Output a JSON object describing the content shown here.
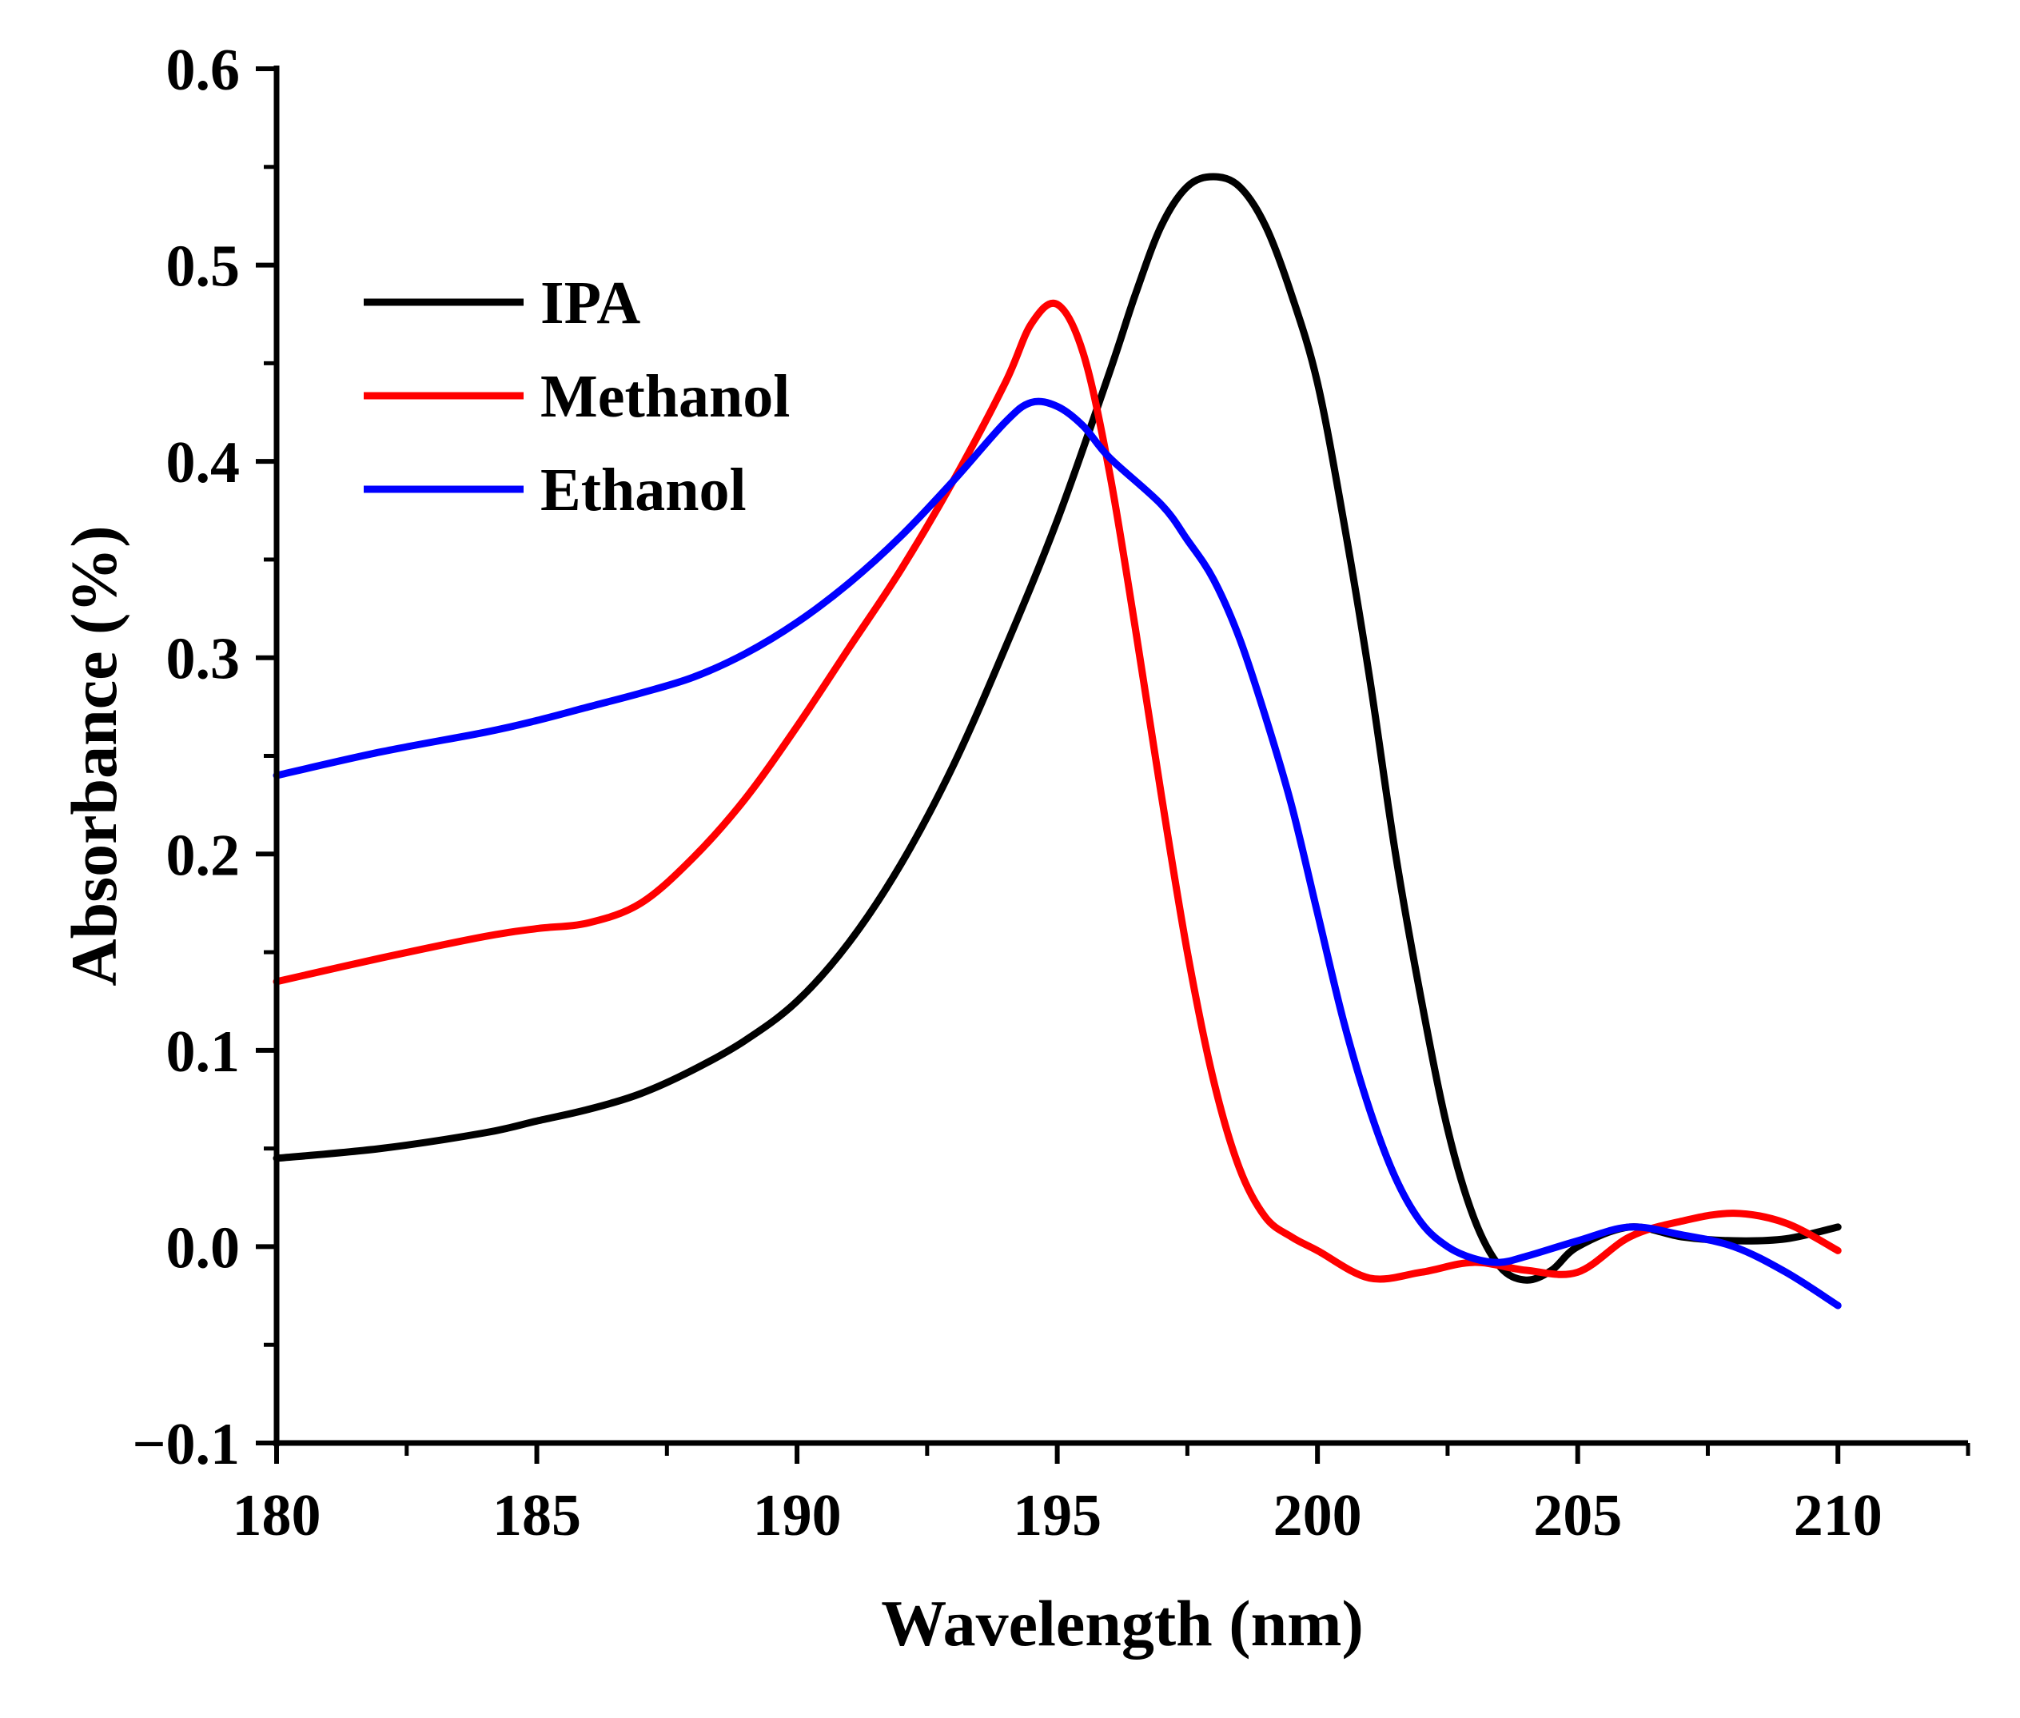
{
  "chart_data": {
    "type": "line",
    "title": "",
    "xlabel": "Wavelength (nm)",
    "ylabel": "Absorbance (%)",
    "xlim": [
      180,
      212.5
    ],
    "ylim": [
      -0.1,
      0.6
    ],
    "x_ticks": [
      180,
      185,
      190,
      195,
      200,
      205,
      210
    ],
    "x_tick_labels": [
      "180",
      "185",
      "190",
      "195",
      "200",
      "205",
      "210"
    ],
    "x_minor_step": 2.5,
    "y_ticks": [
      -0.1,
      0.0,
      0.1,
      0.2,
      0.3,
      0.4,
      0.5,
      0.6
    ],
    "y_tick_labels": [
      "−0.1",
      "0.0",
      "0.1",
      "0.2",
      "0.3",
      "0.4",
      "0.5",
      "0.6"
    ],
    "y_minor_step": 0.05,
    "grid": false,
    "legend_position": "upper-left",
    "series": [
      {
        "name": "IPA",
        "color": "#000000",
        "x": [
          180,
          182,
          184,
          185,
          186,
          187,
          188,
          189,
          190,
          191,
          192,
          193,
          194,
          195,
          196,
          196.5,
          197,
          197.5,
          198,
          198.5,
          199,
          199.5,
          200,
          200.5,
          201,
          201.5,
          202,
          202.5,
          203,
          203.5,
          204,
          204.5,
          205,
          206,
          207,
          208,
          209,
          210
        ],
        "y": [
          0.045,
          0.05,
          0.058,
          0.064,
          0.07,
          0.078,
          0.09,
          0.105,
          0.125,
          0.155,
          0.195,
          0.245,
          0.305,
          0.37,
          0.445,
          0.485,
          0.52,
          0.54,
          0.545,
          0.54,
          0.52,
          0.485,
          0.44,
          0.37,
          0.29,
          0.2,
          0.125,
          0.06,
          0.015,
          -0.01,
          -0.017,
          -0.012,
          0.0,
          0.01,
          0.005,
          0.003,
          0.004,
          0.01
        ]
      },
      {
        "name": "Methanol",
        "color": "#ff0000",
        "x": [
          180,
          182,
          184,
          185,
          186,
          187,
          188,
          189,
          190,
          191,
          192,
          193,
          194,
          194.5,
          195,
          195.5,
          196,
          196.5,
          197,
          197.5,
          198,
          198.5,
          199,
          199.5,
          200,
          201,
          202,
          203,
          204,
          205,
          206,
          207,
          208,
          209,
          210
        ],
        "y": [
          0.135,
          0.147,
          0.158,
          0.162,
          0.165,
          0.175,
          0.198,
          0.228,
          0.265,
          0.305,
          0.345,
          0.39,
          0.44,
          0.47,
          0.48,
          0.455,
          0.395,
          0.315,
          0.23,
          0.15,
          0.085,
          0.04,
          0.015,
          0.005,
          -0.002,
          -0.016,
          -0.013,
          -0.008,
          -0.012,
          -0.013,
          0.005,
          0.013,
          0.017,
          0.012,
          -0.002
        ]
      },
      {
        "name": "Ethanol",
        "color": "#0000ff",
        "x": [
          180,
          182,
          184,
          185,
          186,
          187,
          188,
          189,
          190,
          191,
          192,
          193,
          194,
          194.5,
          195,
          195.5,
          196,
          197,
          197.5,
          198,
          198.5,
          199,
          199.5,
          200,
          200.5,
          201,
          201.5,
          202,
          202.5,
          203,
          203.5,
          204,
          205,
          206,
          207,
          208,
          209,
          210
        ],
        "y": [
          0.24,
          0.252,
          0.262,
          0.268,
          0.275,
          0.282,
          0.29,
          0.302,
          0.318,
          0.338,
          0.362,
          0.39,
          0.42,
          0.43,
          0.428,
          0.418,
          0.402,
          0.378,
          0.36,
          0.34,
          0.31,
          0.27,
          0.225,
          0.17,
          0.115,
          0.07,
          0.035,
          0.012,
          0.0,
          -0.006,
          -0.008,
          -0.005,
          0.003,
          0.01,
          0.006,
          0.0,
          -0.013,
          -0.03
        ]
      }
    ]
  }
}
